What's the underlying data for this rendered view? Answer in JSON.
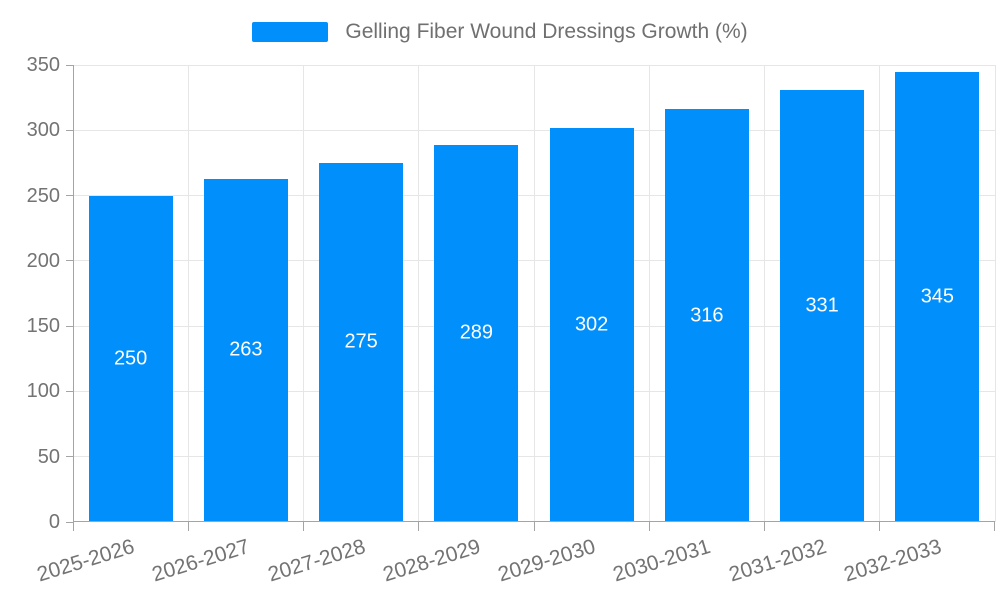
{
  "chart_data": {
    "type": "bar",
    "title": "Gelling Fiber Wound Dressings Growth (%)",
    "categories": [
      "2025-2026",
      "2026-2027",
      "2027-2028",
      "2028-2029",
      "2029-2030",
      "2030-2031",
      "2031-2032",
      "2032-2033"
    ],
    "values": [
      250,
      263,
      275,
      289,
      302,
      316,
      331,
      345
    ],
    "y_ticks": [
      0,
      50,
      100,
      150,
      200,
      250,
      300,
      350
    ],
    "ylim": [
      0,
      350
    ],
    "xlabel": "",
    "ylabel": "",
    "grid": "both",
    "legend_position": "top",
    "value_labels": "center",
    "colors": {
      "bar": "#008FFB",
      "value_label": "#ffffff",
      "axis_text": "#737373",
      "legend_text": "#707070",
      "grid_line": "#e6e6e6",
      "axis_line": "#a4a4a4",
      "background": "#ffffff"
    }
  }
}
